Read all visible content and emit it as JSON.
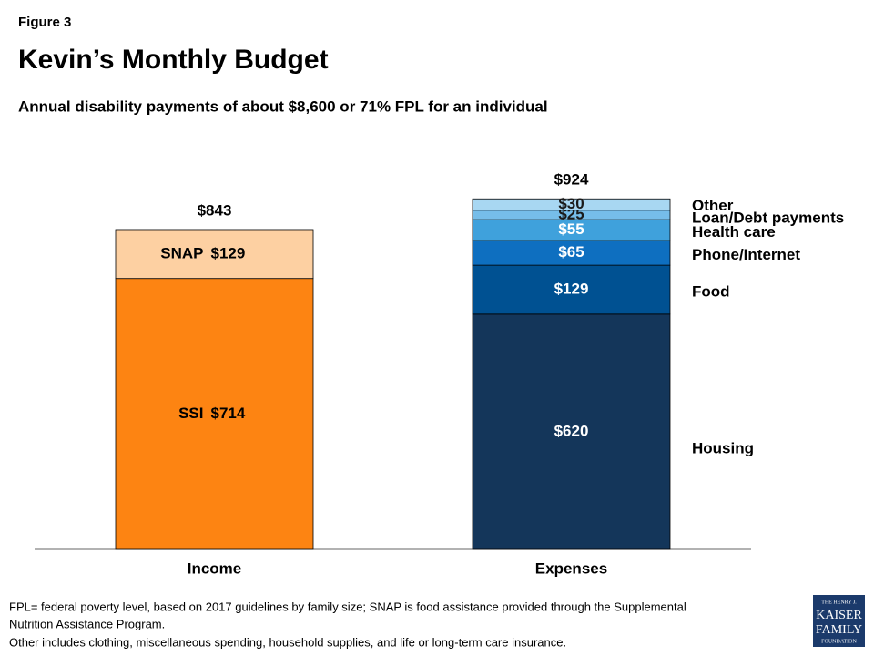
{
  "figure_label": "Figure 3",
  "chart_data": {
    "type": "stacked_bar",
    "title": "Kevin’s Monthly Budget",
    "subtitle": "Annual disability payments of about $8,600 or 71% FPL for an individual",
    "categories": [
      "Income",
      "Expenses"
    ],
    "ylim": [
      0,
      1000
    ],
    "totals": [
      843,
      924
    ],
    "total_labels": [
      "$843",
      "$924"
    ],
    "series": [
      {
        "name": "SSI",
        "color": "#fd8412",
        "values": [
          714,
          null
        ],
        "value_labels": [
          "$714",
          null
        ]
      },
      {
        "name": "SNAP",
        "color": "#fdd0a2",
        "values": [
          129,
          null
        ],
        "value_labels": [
          "$129",
          null
        ]
      },
      {
        "name": "Housing",
        "color": "#14365a",
        "values": [
          null,
          620
        ],
        "value_labels": [
          null,
          "$620"
        ]
      },
      {
        "name": "Food",
        "color": "#005192",
        "values": [
          null,
          129
        ],
        "value_labels": [
          null,
          "$129"
        ]
      },
      {
        "name": "Phone/Internet",
        "color": "#0e6fc0",
        "values": [
          null,
          65
        ],
        "value_labels": [
          null,
          "$65"
        ]
      },
      {
        "name": "Health care",
        "color": "#3fa1dc",
        "values": [
          null,
          55
        ],
        "value_labels": [
          null,
          "$55"
        ]
      },
      {
        "name": "Loan/Debt payments",
        "color": "#76bde9",
        "values": [
          null,
          25
        ],
        "value_labels": [
          null,
          "$25"
        ]
      },
      {
        "name": "Other",
        "color": "#a8d7f2",
        "values": [
          null,
          30
        ],
        "value_labels": [
          null,
          "$30"
        ]
      }
    ]
  },
  "notes": [
    "FPL= federal poverty level, based on 2017 guidelines by family size; SNAP is food assistance provided through  the Supplemental",
    "Nutrition  Assistance Program.",
    "Other includes clothing, miscellaneous spending, household   supplies, and life or long-term care insurance."
  ],
  "logo": [
    "THE HENRY J.",
    "KAISER",
    "FAMILY",
    "FOUNDATION"
  ]
}
